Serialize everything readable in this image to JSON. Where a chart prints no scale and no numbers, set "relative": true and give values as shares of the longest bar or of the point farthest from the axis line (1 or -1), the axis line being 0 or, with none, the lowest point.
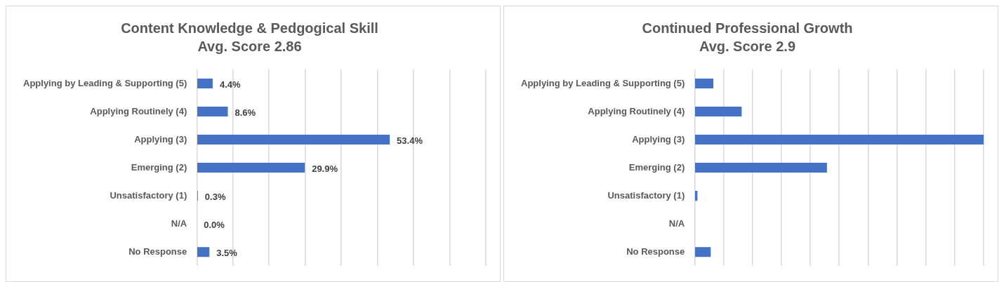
{
  "chart_data": [
    {
      "type": "bar",
      "orientation": "horizontal",
      "title": "Content Knowledge & Pedgogical Skill",
      "subtitle": "Avg. Score 2.86",
      "categories": [
        "Applying by Leading & Supporting (5)",
        "Applying Routinely (4)",
        "Applying (3)",
        "Emerging (2)",
        "Unsatisfactory (1)",
        "N/A",
        "No Response"
      ],
      "values": [
        4.4,
        8.6,
        53.4,
        29.9,
        0.3,
        0.0,
        3.5
      ],
      "value_labels": [
        "4.4%",
        "8.6%",
        "53.4%",
        "29.9%",
        "0.3%",
        "0.0%",
        "3.5%"
      ],
      "color": "#4472c4",
      "xlim": [
        0,
        80
      ],
      "xticks": [
        {
          "value": 0,
          "label": null
        },
        {
          "value": 10,
          "label": null
        },
        {
          "value": 20,
          "label": null
        },
        {
          "value": 30,
          "label": null
        },
        {
          "value": 40,
          "label": null
        },
        {
          "value": 50,
          "label": null
        },
        {
          "value": 60,
          "label": null
        },
        {
          "value": 70,
          "label": null
        },
        {
          "value": 80,
          "label": null
        }
      ],
      "grid": "x",
      "tick_labels": "y",
      "legend": false
    },
    {
      "type": "bar",
      "orientation": "horizontal",
      "title": "Continued Professional Growth",
      "subtitle": "Avg. Score 2.9",
      "categories": [
        "Applying by Leading & Supporting (5)",
        "Applying Routinely (4)",
        "Applying (3)",
        "Emerging (2)",
        "Unsatisfactory (1)",
        "N/A",
        "No Response"
      ],
      "values": [
        0.065,
        0.163,
        1,
        0.458,
        0.01,
        0,
        0.056
      ],
      "color": "#4472c4",
      "relative": true,
      "grid": "x",
      "legend": false
    }
  ]
}
